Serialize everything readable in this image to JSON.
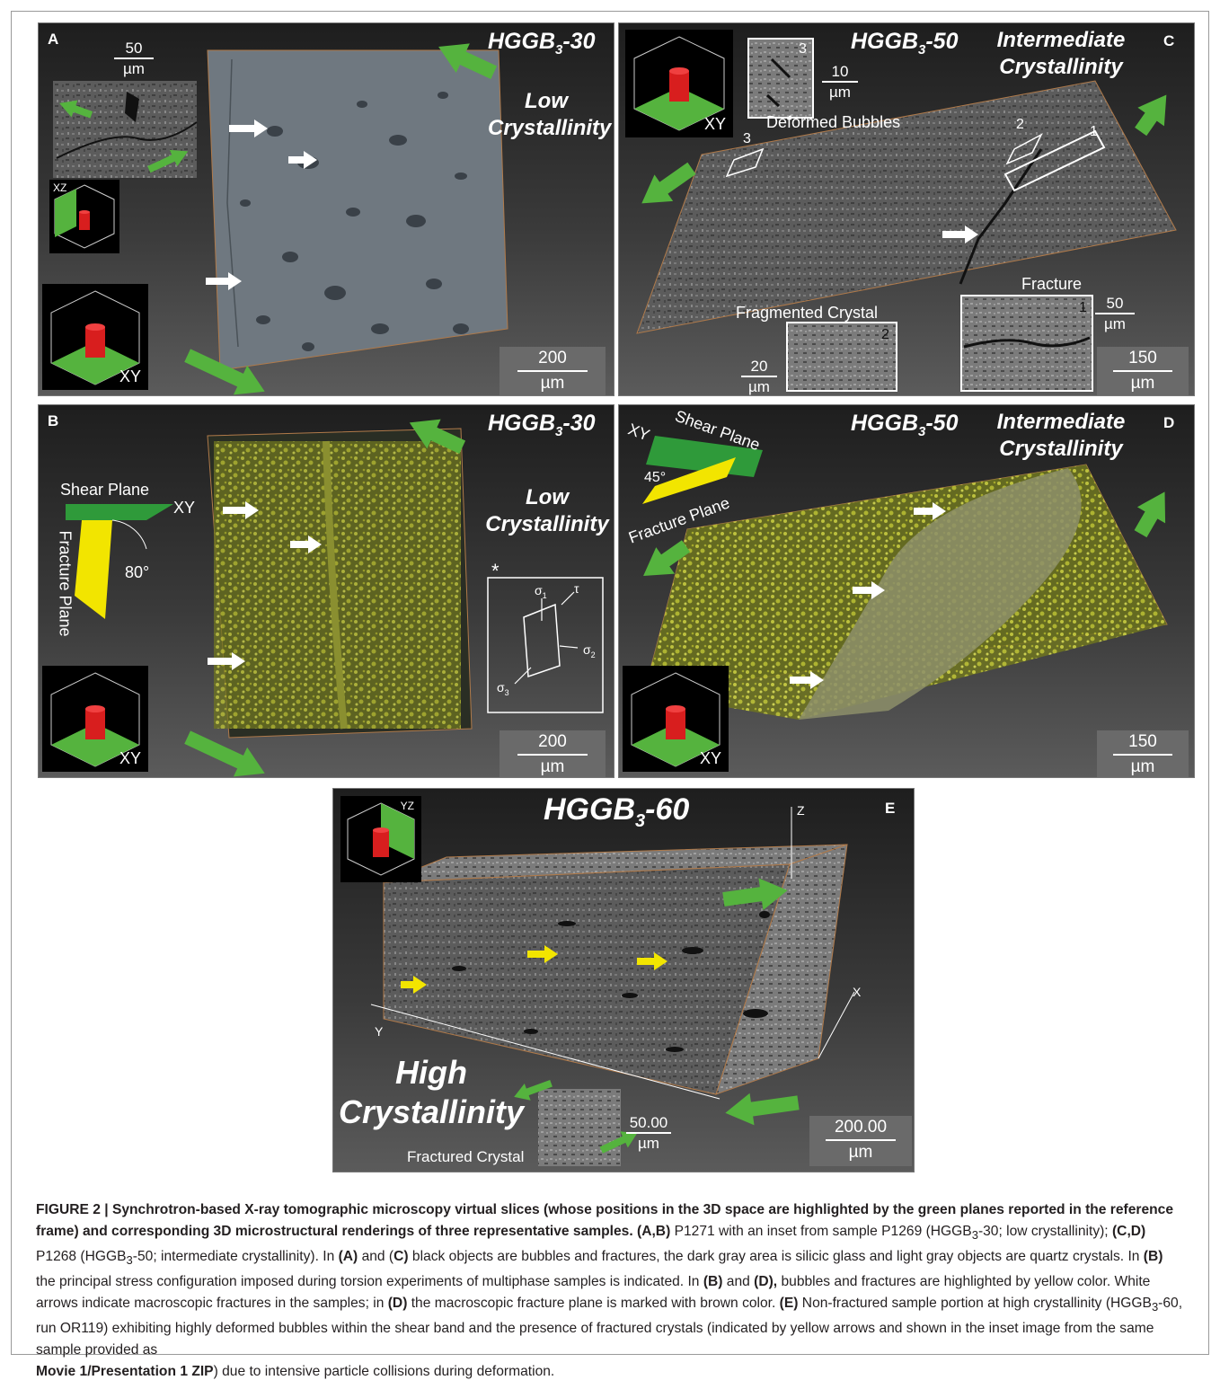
{
  "panels": {
    "a": {
      "letter": "A",
      "title": "HGGB",
      "title_sub": "3",
      "title_suffix": "-30",
      "cryst_line1": "Low",
      "cryst_line2": "Crystallinity",
      "inset_scale_value": "50",
      "inset_scale_unit": "µm",
      "scale_value": "200",
      "scale_unit": "µm",
      "cube_small_label": "XZ",
      "cube_large_label": "XY"
    },
    "b": {
      "letter": "B",
      "title": "HGGB",
      "title_sub": "3",
      "title_suffix": "-30",
      "cryst_line1": "Low",
      "cryst_line2": "Crystallinity",
      "shear_plane": "Shear Plane",
      "fracture_plane": "Fracture Plane",
      "plane_xy": "XY",
      "angle": "80°",
      "asterisk": "*",
      "sigma1": "σ",
      "sigma1_sub": "1",
      "sigma2": "σ",
      "sigma2_sub": "2",
      "sigma3": "σ",
      "sigma3_sub": "3",
      "tau": "τ",
      "scale_value": "200",
      "scale_unit": "µm",
      "cube_label": "XY"
    },
    "c": {
      "letter": "C",
      "title": "HGGB",
      "title_sub": "3",
      "title_suffix": "-50",
      "cryst_line1": "Intermediate",
      "cryst_line2": "Crystallinity",
      "cube_label": "XY",
      "deformed_bubbles": "Deformed Bubbles",
      "fragmented_crystal": "Fragmented Crystal",
      "fracture": "Fracture",
      "marker1": "1",
      "marker2": "2",
      "marker3": "3",
      "inset3_scale_value": "10",
      "inset3_scale_unit": "µm",
      "inset2_scale_value": "20",
      "inset2_scale_unit": "µm",
      "inset1_scale_value": "50",
      "inset1_scale_unit": "µm",
      "scale_value": "150",
      "scale_unit": "µm"
    },
    "d": {
      "letter": "D",
      "title": "HGGB",
      "title_sub": "3",
      "title_suffix": "-50",
      "cryst_line1": "Intermediate",
      "cryst_line2": "Crystallinity",
      "shear_plane": "Shear Plane",
      "fracture_plane": "Fracture Plane",
      "plane_xy": "XY",
      "angle": "45°",
      "scale_value": "150",
      "scale_unit": "µm",
      "cube_label": "XY"
    },
    "e": {
      "letter": "E",
      "title": "HGGB",
      "title_sub": "3",
      "title_suffix": "-60",
      "cube_label": "YZ",
      "axis_z": "Z",
      "axis_x": "X",
      "axis_y": "Y",
      "cryst_line1": "High",
      "cryst_line2": "Crystallinity",
      "fractured_crystal": "Fractured Crystal",
      "inset_scale_value": "50.00",
      "inset_scale_unit": "µm",
      "scale_value": "200.00",
      "scale_unit": "µm"
    }
  },
  "caption": {
    "t1": "FIGURE 2 | Synchrotron-based X-ray tomographic microscopy virtual slices (whose positions in the 3D space are highlighted by the green planes reported in the reference frame) and corresponding 3D microstructural renderings of three representative samples.",
    "t2": "(A,B)",
    "t3": " P1271 with an inset from sample P1269 (HGGB",
    "t4": "3",
    "t5": "-30; low crystallinity); ",
    "t6": "(C,D)",
    "t7": " P1268 (HGGB",
    "t8": "3",
    "t9": "-50; intermediate crystallinity). In ",
    "t10": "(A)",
    "t11": " and (",
    "t12": "C)",
    "t13": " black objects are bubbles and fractures, the dark gray area is silicic glass and light gray objects are quartz crystals. In ",
    "t14": "(B)",
    "t15": " the principal stress configuration imposed during torsion experiments of multiphase samples is indicated. In ",
    "t16": "(B)",
    "t17": " and ",
    "t18": "(D),",
    "t19": " bubbles and fractures are highlighted by yellow color. White arrows indicate macroscopic fractures in the samples; in ",
    "t20": "(D)",
    "t21": " the macroscopic fracture plane is marked with brown color. ",
    "t22": "(E)",
    "t23": " Non-fractured sample portion at high crystallinity (HGGB",
    "t24": "3",
    "t25": "-60, run OR119) exhibiting highly deformed bubbles within the shear band and the presence of fractured crystals (indicated by yellow arrows and shown in the inset image from the same sample provided as ",
    "t26": "Movie 1/Presentation 1 ZIP",
    "t27": ") due to intensive particle collisions during deformation."
  }
}
